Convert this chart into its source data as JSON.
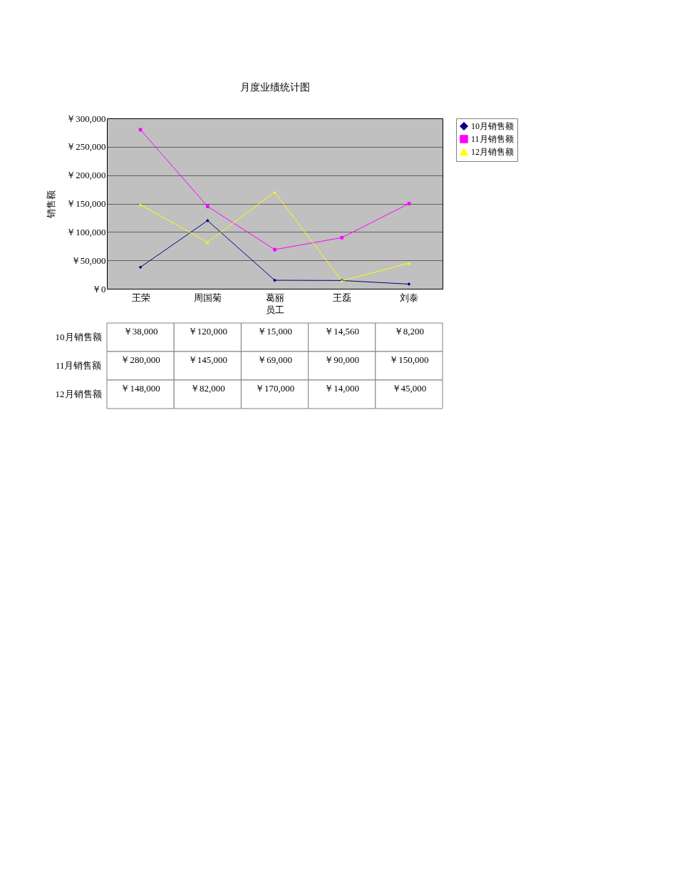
{
  "chart_data": {
    "type": "line",
    "title": "月度业绩统计图",
    "xlabel": "员工",
    "ylabel": "销售额",
    "categories": [
      "王荣",
      "周国菊",
      "葛丽",
      "王磊",
      "刘泰"
    ],
    "series": [
      {
        "name": "10月销售额",
        "color": "#000080",
        "marker": "diamond",
        "values": [
          38000,
          120000,
          15000,
          14560,
          8200
        ],
        "value_labels": [
          "￥38,000",
          "￥120,000",
          "￥15,000",
          "￥14,560",
          "￥8,200"
        ]
      },
      {
        "name": "11月销售额",
        "color": "#ff00ff",
        "marker": "square",
        "values": [
          280000,
          145000,
          69000,
          90000,
          150000
        ],
        "value_labels": [
          "￥280,000",
          "￥145,000",
          "￥69,000",
          "￥90,000",
          "￥150,000"
        ]
      },
      {
        "name": "12月销售额",
        "color": "#ffff00",
        "marker": "triangle",
        "values": [
          148000,
          82000,
          170000,
          14000,
          45000
        ],
        "value_labels": [
          "￥148,000",
          "￥82,000",
          "￥170,000",
          "￥14,000",
          "￥45,000"
        ]
      }
    ],
    "ylim": [
      0,
      300000
    ],
    "yticks": [
      {
        "value": 0,
        "label": "￥0"
      },
      {
        "value": 50000,
        "label": "￥50,000"
      },
      {
        "value": 100000,
        "label": "￥100,000"
      },
      {
        "value": 150000,
        "label": "￥150,000"
      },
      {
        "value": 200000,
        "label": "￥200,000"
      },
      {
        "value": 250000,
        "label": "￥250,000"
      },
      {
        "value": 300000,
        "label": "￥300,000"
      }
    ],
    "grid": "y",
    "legend": "right",
    "line_style": "solid"
  }
}
